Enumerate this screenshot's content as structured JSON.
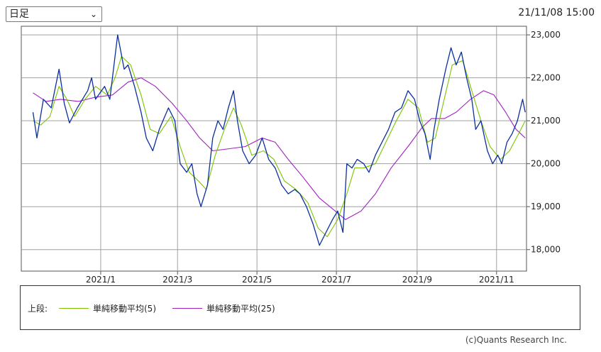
{
  "header": {
    "period_label": "日足",
    "timestamp": "21/11/08 15:00"
  },
  "legend": {
    "prefix": "上段:",
    "items": [
      {
        "label": "単純移動平均(5)",
        "color": "#7cc400"
      },
      {
        "label": "単純移動平均(25)",
        "color": "#a020c0"
      }
    ]
  },
  "copyright": "(c)Quants Research Inc.",
  "colors": {
    "price": "#0a2fa0",
    "ma5": "#7cc400",
    "ma25": "#a020c0",
    "grid": "#a0a0a0"
  },
  "chart_data": {
    "type": "line",
    "x_ticks": [
      "2021/1",
      "2021/3",
      "2021/5",
      "2021/7",
      "2021/9",
      "2021/11"
    ],
    "y_ticks": [
      "23,000",
      "22,000",
      "21,000",
      "20,000",
      "19,000",
      "18,000"
    ],
    "ylim": [
      17500,
      23200
    ],
    "xlim": [
      "2020-11-01",
      "2021-11-24"
    ],
    "grid": true,
    "series": [
      {
        "key": "price",
        "points": [
          [
            "2020-11-10",
            21200
          ],
          [
            "2020-11-13",
            20600
          ],
          [
            "2020-11-18",
            21500
          ],
          [
            "2020-11-24",
            21300
          ],
          [
            "2020-11-30",
            22200
          ],
          [
            "2020-12-04",
            21400
          ],
          [
            "2020-12-08",
            20950
          ],
          [
            "2020-12-14",
            21300
          ],
          [
            "2020-12-18",
            21500
          ],
          [
            "2020-12-22",
            21700
          ],
          [
            "2020-12-25",
            22000
          ],
          [
            "2020-12-28",
            21500
          ],
          [
            "2021-01-04",
            21800
          ],
          [
            "2021-01-08",
            21500
          ],
          [
            "2021-01-14",
            23000
          ],
          [
            "2021-01-19",
            22200
          ],
          [
            "2021-01-22",
            22300
          ],
          [
            "2021-01-27",
            21800
          ],
          [
            "2021-02-01",
            21200
          ],
          [
            "2021-02-05",
            20600
          ],
          [
            "2021-02-10",
            20300
          ],
          [
            "2021-02-15",
            20800
          ],
          [
            "2021-02-22",
            21300
          ],
          [
            "2021-02-27",
            21000
          ],
          [
            "2021-03-03",
            20000
          ],
          [
            "2021-03-08",
            19800
          ],
          [
            "2021-03-12",
            20000
          ],
          [
            "2021-03-16",
            19300
          ],
          [
            "2021-03-19",
            19000
          ],
          [
            "2021-03-24",
            19500
          ],
          [
            "2021-03-28",
            20600
          ],
          [
            "2021-04-01",
            21000
          ],
          [
            "2021-04-05",
            20800
          ],
          [
            "2021-04-09",
            21300
          ],
          [
            "2021-04-13",
            21700
          ],
          [
            "2021-04-16",
            21000
          ],
          [
            "2021-04-20",
            20300
          ],
          [
            "2021-04-25",
            20000
          ],
          [
            "2021-04-30",
            20200
          ],
          [
            "2021-05-05",
            20600
          ],
          [
            "2021-05-10",
            20100
          ],
          [
            "2021-05-15",
            19900
          ],
          [
            "2021-05-20",
            19500
          ],
          [
            "2021-05-25",
            19300
          ],
          [
            "2021-05-30",
            19400
          ],
          [
            "2021-06-03",
            19300
          ],
          [
            "2021-06-08",
            19000
          ],
          [
            "2021-06-13",
            18600
          ],
          [
            "2021-06-18",
            18100
          ],
          [
            "2021-06-23",
            18400
          ],
          [
            "2021-06-28",
            18700
          ],
          [
            "2021-07-02",
            18900
          ],
          [
            "2021-07-06",
            18400
          ],
          [
            "2021-07-09",
            20000
          ],
          [
            "2021-07-13",
            19900
          ],
          [
            "2021-07-17",
            20100
          ],
          [
            "2021-07-22",
            20000
          ],
          [
            "2021-07-26",
            19800
          ],
          [
            "2021-07-31",
            20200
          ],
          [
            "2021-08-05",
            20500
          ],
          [
            "2021-08-10",
            20800
          ],
          [
            "2021-08-15",
            21200
          ],
          [
            "2021-08-20",
            21300
          ],
          [
            "2021-08-25",
            21700
          ],
          [
            "2021-08-30",
            21500
          ],
          [
            "2021-09-03",
            21000
          ],
          [
            "2021-09-07",
            20700
          ],
          [
            "2021-09-11",
            20100
          ],
          [
            "2021-09-14",
            20800
          ],
          [
            "2021-09-18",
            21500
          ],
          [
            "2021-09-23",
            22200
          ],
          [
            "2021-09-27",
            22700
          ],
          [
            "2021-10-01",
            22300
          ],
          [
            "2021-10-05",
            22600
          ],
          [
            "2021-10-09",
            22000
          ],
          [
            "2021-10-13",
            21500
          ],
          [
            "2021-10-16",
            20800
          ],
          [
            "2021-10-20",
            21000
          ],
          [
            "2021-10-25",
            20300
          ],
          [
            "2021-10-29",
            20000
          ],
          [
            "2021-11-02",
            20200
          ],
          [
            "2021-11-05",
            20000
          ],
          [
            "2021-11-09",
            20500
          ],
          [
            "2021-11-13",
            20700
          ],
          [
            "2021-11-17",
            21000
          ],
          [
            "2021-11-21",
            21500
          ],
          [
            "2021-11-23",
            21200
          ]
        ]
      },
      {
        "key": "ma5",
        "points": [
          [
            "2020-11-10",
            21000
          ],
          [
            "2020-11-16",
            20900
          ],
          [
            "2020-11-23",
            21100
          ],
          [
            "2020-11-30",
            21800
          ],
          [
            "2020-12-06",
            21500
          ],
          [
            "2020-12-12",
            21100
          ],
          [
            "2020-12-20",
            21500
          ],
          [
            "2020-12-28",
            21800
          ],
          [
            "2021-01-06",
            21600
          ],
          [
            "2021-01-12",
            22000
          ],
          [
            "2021-01-17",
            22500
          ],
          [
            "2021-01-24",
            22300
          ],
          [
            "2021-02-01",
            21600
          ],
          [
            "2021-02-08",
            20800
          ],
          [
            "2021-02-15",
            20700
          ],
          [
            "2021-02-24",
            21100
          ],
          [
            "2021-03-03",
            20400
          ],
          [
            "2021-03-10",
            19800
          ],
          [
            "2021-03-17",
            19600
          ],
          [
            "2021-03-23",
            19400
          ],
          [
            "2021-03-30",
            20200
          ],
          [
            "2021-04-06",
            20800
          ],
          [
            "2021-04-13",
            21300
          ],
          [
            "2021-04-19",
            20900
          ],
          [
            "2021-04-27",
            20200
          ],
          [
            "2021-05-06",
            20300
          ],
          [
            "2021-05-14",
            20100
          ],
          [
            "2021-05-22",
            19600
          ],
          [
            "2021-05-31",
            19400
          ],
          [
            "2021-06-09",
            19100
          ],
          [
            "2021-06-17",
            18500
          ],
          [
            "2021-06-24",
            18300
          ],
          [
            "2021-07-02",
            18700
          ],
          [
            "2021-07-09",
            19300
          ],
          [
            "2021-07-15",
            19900
          ],
          [
            "2021-07-22",
            19900
          ],
          [
            "2021-07-31",
            20000
          ],
          [
            "2021-08-08",
            20500
          ],
          [
            "2021-08-16",
            21000
          ],
          [
            "2021-08-25",
            21500
          ],
          [
            "2021-09-02",
            21300
          ],
          [
            "2021-09-09",
            20500
          ],
          [
            "2021-09-15",
            20600
          ],
          [
            "2021-09-21",
            21400
          ],
          [
            "2021-09-28",
            22300
          ],
          [
            "2021-10-06",
            22400
          ],
          [
            "2021-10-13",
            21700
          ],
          [
            "2021-10-20",
            21000
          ],
          [
            "2021-10-27",
            20400
          ],
          [
            "2021-11-04",
            20100
          ],
          [
            "2021-11-11",
            20300
          ],
          [
            "2021-11-18",
            20700
          ],
          [
            "2021-11-23",
            21000
          ]
        ]
      },
      {
        "key": "ma25",
        "points": [
          [
            "2020-11-10",
            21650
          ],
          [
            "2020-11-20",
            21450
          ],
          [
            "2020-12-01",
            21500
          ],
          [
            "2020-12-15",
            21450
          ],
          [
            "2020-12-28",
            21550
          ],
          [
            "2021-01-10",
            21600
          ],
          [
            "2021-01-22",
            21900
          ],
          [
            "2021-02-01",
            22000
          ],
          [
            "2021-02-12",
            21800
          ],
          [
            "2021-02-25",
            21400
          ],
          [
            "2021-03-08",
            21000
          ],
          [
            "2021-03-18",
            20600
          ],
          [
            "2021-03-28",
            20300
          ],
          [
            "2021-04-10",
            20350
          ],
          [
            "2021-04-22",
            20400
          ],
          [
            "2021-05-05",
            20600
          ],
          [
            "2021-05-15",
            20500
          ],
          [
            "2021-05-25",
            20100
          ],
          [
            "2021-06-05",
            19700
          ],
          [
            "2021-06-18",
            19200
          ],
          [
            "2021-06-28",
            18950
          ],
          [
            "2021-07-08",
            18700
          ],
          [
            "2021-07-20",
            18900
          ],
          [
            "2021-07-31",
            19300
          ],
          [
            "2021-08-12",
            19900
          ],
          [
            "2021-08-25",
            20400
          ],
          [
            "2021-09-05",
            20850
          ],
          [
            "2021-09-12",
            21050
          ],
          [
            "2021-09-22",
            21050
          ],
          [
            "2021-10-01",
            21200
          ],
          [
            "2021-10-12",
            21500
          ],
          [
            "2021-10-22",
            21700
          ],
          [
            "2021-10-30",
            21600
          ],
          [
            "2021-11-08",
            21200
          ],
          [
            "2021-11-16",
            20800
          ],
          [
            "2021-11-23",
            20600
          ]
        ]
      }
    ]
  }
}
